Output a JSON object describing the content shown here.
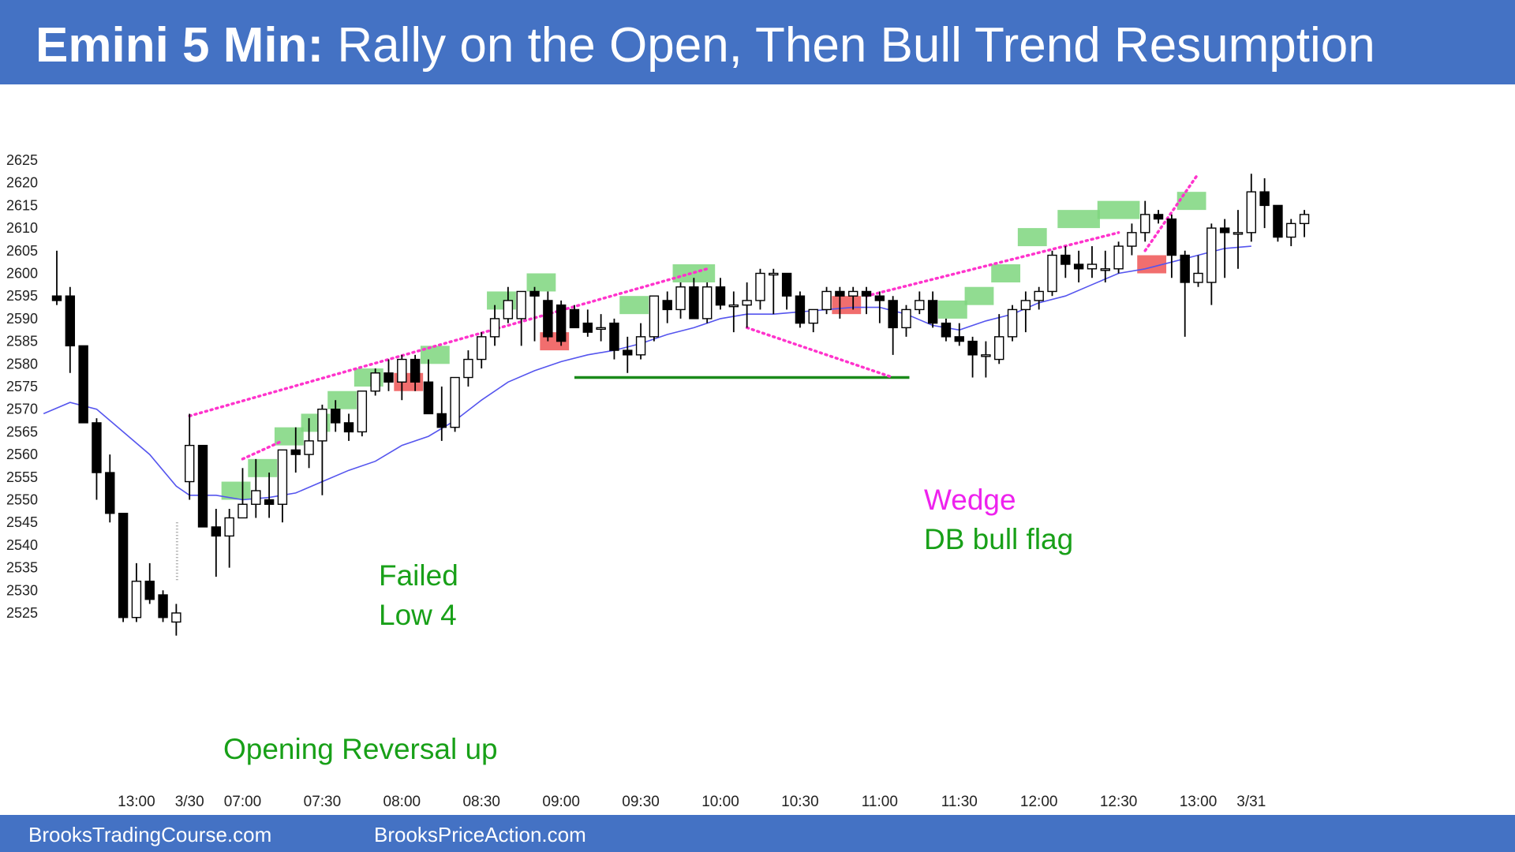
{
  "title": {
    "bold": "Emini 5 Min:",
    "rest": " Rally on the Open, Then Bull Trend Resumption"
  },
  "footer": {
    "left": "BrooksTradingCourse.com",
    "right": "BrooksPriceAction.com"
  },
  "annotations": {
    "opening_reversal": "Opening Reversal up",
    "failed_low4_line1": "Failed",
    "failed_low4_line2": "Low 4",
    "wedge": "Wedge",
    "db_bull_flag": "DB bull flag"
  },
  "colors": {
    "header_bg": "#4472c4",
    "bull_box": "#7ed67e",
    "bear_box": "#ee5555",
    "ema": "#5555ee",
    "trendline": "#ff33cc",
    "support": "#1a8a1a",
    "annotation_green": "#18a018",
    "annotation_magenta": "#ee22ee"
  },
  "chart_data": {
    "type": "candlestick",
    "title": "Emini 5 Min: Rally on the Open, Then Bull Trend Resumption",
    "y_ticks": [
      2525,
      2530,
      2535,
      2540,
      2545,
      2550,
      2555,
      2560,
      2565,
      2570,
      2575,
      2580,
      2585,
      2590,
      2595,
      2600,
      2605,
      2610,
      2615,
      2620,
      2625
    ],
    "ylim": [
      2519,
      2627
    ],
    "x_ticks": [
      {
        "bar": 6,
        "label": "13:00"
      },
      {
        "bar": 10,
        "label": "3/30"
      },
      {
        "bar": 14,
        "label": "07:00"
      },
      {
        "bar": 20,
        "label": "07:30"
      },
      {
        "bar": 26,
        "label": "08:00"
      },
      {
        "bar": 32,
        "label": "08:30"
      },
      {
        "bar": 38,
        "label": "09:00"
      },
      {
        "bar": 44,
        "label": "09:30"
      },
      {
        "bar": 50,
        "label": "10:00"
      },
      {
        "bar": 56,
        "label": "10:30"
      },
      {
        "bar": 62,
        "label": "11:00"
      },
      {
        "bar": 68,
        "label": "11:30"
      },
      {
        "bar": 74,
        "label": "12:00"
      },
      {
        "bar": 80,
        "label": "12:30"
      },
      {
        "bar": 86,
        "label": "13:00"
      },
      {
        "bar": 90,
        "label": "3/31"
      }
    ],
    "candles": [
      {
        "o": 2595,
        "h": 2605,
        "l": 2593,
        "c": 2594
      },
      {
        "o": 2595,
        "h": 2597,
        "l": 2578,
        "c": 2584
      },
      {
        "o": 2584,
        "h": 2584,
        "l": 2567,
        "c": 2567
      },
      {
        "o": 2567,
        "h": 2568,
        "l": 2550,
        "c": 2556
      },
      {
        "o": 2556,
        "h": 2560,
        "l": 2545,
        "c": 2547
      },
      {
        "o": 2547,
        "h": 2547,
        "l": 2523,
        "c": 2524
      },
      {
        "o": 2524,
        "h": 2536,
        "l": 2523,
        "c": 2532
      },
      {
        "o": 2532,
        "h": 2536,
        "l": 2527,
        "c": 2528
      },
      {
        "o": 2529,
        "h": 2530,
        "l": 2523,
        "c": 2524
      },
      {
        "o": 2523,
        "h": 2527,
        "l": 2520,
        "c": 2525
      },
      {
        "o": 2554,
        "h": 2569,
        "l": 2550,
        "c": 2562
      },
      {
        "o": 2562,
        "h": 2562,
        "l": 2544,
        "c": 2544
      },
      {
        "o": 2544,
        "h": 2548,
        "l": 2533,
        "c": 2542
      },
      {
        "o": 2542,
        "h": 2548,
        "l": 2535,
        "c": 2546
      },
      {
        "o": 2546,
        "h": 2557,
        "l": 2546,
        "c": 2549
      },
      {
        "o": 2549,
        "h": 2559,
        "l": 2546,
        "c": 2552
      },
      {
        "o": 2550,
        "h": 2556,
        "l": 2546,
        "c": 2549
      },
      {
        "o": 2549,
        "h": 2561,
        "l": 2545,
        "c": 2561
      },
      {
        "o": 2561,
        "h": 2566,
        "l": 2556,
        "c": 2560
      },
      {
        "o": 2560,
        "h": 2568,
        "l": 2557,
        "c": 2563
      },
      {
        "o": 2563,
        "h": 2571,
        "l": 2551,
        "c": 2570
      },
      {
        "o": 2570,
        "h": 2572,
        "l": 2565,
        "c": 2567
      },
      {
        "o": 2567,
        "h": 2569,
        "l": 2563,
        "c": 2565
      },
      {
        "o": 2565,
        "h": 2574,
        "l": 2564,
        "c": 2574
      },
      {
        "o": 2574,
        "h": 2579,
        "l": 2573,
        "c": 2578
      },
      {
        "o": 2578,
        "h": 2581,
        "l": 2574,
        "c": 2576
      },
      {
        "o": 2576,
        "h": 2582,
        "l": 2572,
        "c": 2581
      },
      {
        "o": 2581,
        "h": 2582,
        "l": 2574,
        "c": 2576
      },
      {
        "o": 2576,
        "h": 2581,
        "l": 2570,
        "c": 2569
      },
      {
        "o": 2569,
        "h": 2575,
        "l": 2563,
        "c": 2566
      },
      {
        "o": 2566,
        "h": 2577,
        "l": 2565,
        "c": 2577
      },
      {
        "o": 2577,
        "h": 2583,
        "l": 2575,
        "c": 2581
      },
      {
        "o": 2581,
        "h": 2587,
        "l": 2579,
        "c": 2586
      },
      {
        "o": 2586,
        "h": 2593,
        "l": 2584,
        "c": 2590
      },
      {
        "o": 2590,
        "h": 2597,
        "l": 2589,
        "c": 2594
      },
      {
        "o": 2590,
        "h": 2596,
        "l": 2584,
        "c": 2596
      },
      {
        "o": 2596,
        "h": 2597,
        "l": 2585,
        "c": 2595
      },
      {
        "o": 2594,
        "h": 2596,
        "l": 2585,
        "c": 2586
      },
      {
        "o": 2593,
        "h": 2594,
        "l": 2584,
        "c": 2585
      },
      {
        "o": 2592,
        "h": 2593,
        "l": 2588,
        "c": 2588
      },
      {
        "o": 2589,
        "h": 2592,
        "l": 2586,
        "c": 2587
      },
      {
        "o": 2588,
        "h": 2591,
        "l": 2585,
        "c": 2588
      },
      {
        "o": 2589,
        "h": 2590,
        "l": 2581,
        "c": 2583
      },
      {
        "o": 2583,
        "h": 2586,
        "l": 2578,
        "c": 2582
      },
      {
        "o": 2582,
        "h": 2589,
        "l": 2581,
        "c": 2586
      },
      {
        "o": 2586,
        "h": 2595,
        "l": 2585,
        "c": 2595
      },
      {
        "o": 2594,
        "h": 2596,
        "l": 2589,
        "c": 2592
      },
      {
        "o": 2592,
        "h": 2598,
        "l": 2590,
        "c": 2597
      },
      {
        "o": 2597,
        "h": 2599,
        "l": 2591,
        "c": 2590
      },
      {
        "o": 2590,
        "h": 2598,
        "l": 2589,
        "c": 2597
      },
      {
        "o": 2597,
        "h": 2599,
        "l": 2592,
        "c": 2593
      },
      {
        "o": 2593,
        "h": 2596,
        "l": 2587,
        "c": 2593
      },
      {
        "o": 2593,
        "h": 2598,
        "l": 2588,
        "c": 2594
      },
      {
        "o": 2594,
        "h": 2601,
        "l": 2592,
        "c": 2600
      },
      {
        "o": 2600,
        "h": 2601,
        "l": 2591,
        "c": 2600
      },
      {
        "o": 2600,
        "h": 2600,
        "l": 2592,
        "c": 2595
      },
      {
        "o": 2595,
        "h": 2596,
        "l": 2588,
        "c": 2589
      },
      {
        "o": 2589,
        "h": 2592,
        "l": 2587,
        "c": 2592
      },
      {
        "o": 2592,
        "h": 2597,
        "l": 2591,
        "c": 2596
      },
      {
        "o": 2596,
        "h": 2597,
        "l": 2590,
        "c": 2595
      },
      {
        "o": 2595,
        "h": 2597,
        "l": 2592,
        "c": 2596
      },
      {
        "o": 2596,
        "h": 2597,
        "l": 2591,
        "c": 2595
      },
      {
        "o": 2595,
        "h": 2596,
        "l": 2589,
        "c": 2594
      },
      {
        "o": 2594,
        "h": 2595,
        "l": 2582,
        "c": 2588
      },
      {
        "o": 2588,
        "h": 2593,
        "l": 2586,
        "c": 2592
      },
      {
        "o": 2592,
        "h": 2596,
        "l": 2591,
        "c": 2594
      },
      {
        "o": 2594,
        "h": 2596,
        "l": 2588,
        "c": 2589
      },
      {
        "o": 2589,
        "h": 2590,
        "l": 2585,
        "c": 2586
      },
      {
        "o": 2586,
        "h": 2589,
        "l": 2584,
        "c": 2585
      },
      {
        "o": 2585,
        "h": 2586,
        "l": 2577,
        "c": 2582
      },
      {
        "o": 2582,
        "h": 2585,
        "l": 2577,
        "c": 2582
      },
      {
        "o": 2581,
        "h": 2591,
        "l": 2580,
        "c": 2586
      },
      {
        "o": 2586,
        "h": 2593,
        "l": 2585,
        "c": 2592
      },
      {
        "o": 2592,
        "h": 2596,
        "l": 2587,
        "c": 2594
      },
      {
        "o": 2594,
        "h": 2597,
        "l": 2592,
        "c": 2596
      },
      {
        "o": 2596,
        "h": 2605,
        "l": 2595,
        "c": 2604
      },
      {
        "o": 2604,
        "h": 2606,
        "l": 2599,
        "c": 2602
      },
      {
        "o": 2602,
        "h": 2605,
        "l": 2598,
        "c": 2601
      },
      {
        "o": 2601,
        "h": 2606,
        "l": 2599,
        "c": 2602
      },
      {
        "o": 2601,
        "h": 2605,
        "l": 2598,
        "c": 2601
      },
      {
        "o": 2601,
        "h": 2607,
        "l": 2600,
        "c": 2606
      },
      {
        "o": 2606,
        "h": 2611,
        "l": 2604,
        "c": 2609
      },
      {
        "o": 2609,
        "h": 2616,
        "l": 2607,
        "c": 2613
      },
      {
        "o": 2613,
        "h": 2614,
        "l": 2611,
        "c": 2612
      },
      {
        "o": 2612,
        "h": 2613,
        "l": 2599,
        "c": 2604
      },
      {
        "o": 2604,
        "h": 2605,
        "l": 2586,
        "c": 2598
      },
      {
        "o": 2598,
        "h": 2604,
        "l": 2597,
        "c": 2600
      },
      {
        "o": 2598,
        "h": 2611,
        "l": 2593,
        "c": 2610
      },
      {
        "o": 2610,
        "h": 2612,
        "l": 2599,
        "c": 2609
      },
      {
        "o": 2609,
        "h": 2614,
        "l": 2601,
        "c": 2609
      },
      {
        "o": 2609,
        "h": 2622,
        "l": 2607,
        "c": 2618
      },
      {
        "o": 2618,
        "h": 2621,
        "l": 2610,
        "c": 2615
      },
      {
        "o": 2615,
        "h": 2614,
        "l": 2607,
        "c": 2608
      },
      {
        "o": 2608,
        "h": 2612,
        "l": 2606,
        "c": 2611
      },
      {
        "o": 2611,
        "h": 2614,
        "l": 2608,
        "c": 2613
      }
    ],
    "ema": [
      [
        -1,
        2569
      ],
      [
        1,
        2571.5
      ],
      [
        3,
        2570
      ],
      [
        5,
        2565
      ],
      [
        7,
        2560
      ],
      [
        9,
        2553
      ],
      [
        10,
        2551
      ],
      [
        12,
        2551
      ],
      [
        14,
        2550
      ],
      [
        16,
        2550.5
      ],
      [
        18,
        2551.5
      ],
      [
        20,
        2554
      ],
      [
        22,
        2556.5
      ],
      [
        24,
        2558.5
      ],
      [
        26,
        2562
      ],
      [
        28,
        2564
      ],
      [
        30,
        2567.5
      ],
      [
        32,
        2572
      ],
      [
        34,
        2576
      ],
      [
        36,
        2578.5
      ],
      [
        38,
        2580.5
      ],
      [
        40,
        2582
      ],
      [
        42,
        2583
      ],
      [
        44,
        2584.5
      ],
      [
        46,
        2586.5
      ],
      [
        48,
        2588
      ],
      [
        50,
        2590
      ],
      [
        52,
        2591
      ],
      [
        54,
        2591
      ],
      [
        56,
        2591.5
      ],
      [
        58,
        2592
      ],
      [
        60,
        2592.5
      ],
      [
        62,
        2592.5
      ],
      [
        64,
        2591
      ],
      [
        66,
        2588.5
      ],
      [
        68,
        2587.5
      ],
      [
        70,
        2589.5
      ],
      [
        72,
        2591
      ],
      [
        74,
        2593.5
      ],
      [
        76,
        2595
      ],
      [
        78,
        2597.5
      ],
      [
        80,
        2600
      ],
      [
        82,
        2601
      ],
      [
        84,
        2602.5
      ],
      [
        86,
        2604
      ],
      [
        88,
        2605.5
      ],
      [
        90,
        2606
      ]
    ],
    "bull_signal_boxes": [
      [
        13,
        14,
        2550
      ],
      [
        15,
        16,
        2555
      ],
      [
        17,
        18,
        2562
      ],
      [
        19,
        20,
        2565
      ],
      [
        21,
        22,
        2570
      ],
      [
        23,
        24,
        2575
      ],
      [
        28,
        29,
        2580
      ],
      [
        33,
        34,
        2592
      ],
      [
        36,
        37,
        2596
      ],
      [
        43,
        44,
        2591
      ],
      [
        47,
        49,
        2598
      ],
      [
        67,
        68,
        2590
      ],
      [
        69,
        70,
        2593
      ],
      [
        71,
        72,
        2598
      ],
      [
        73,
        74,
        2606
      ],
      [
        76,
        78,
        2610
      ],
      [
        79,
        81,
        2612
      ],
      [
        85,
        86,
        2614
      ]
    ],
    "bear_signal_boxes": [
      [
        26,
        27,
        2574
      ],
      [
        37,
        38,
        2583
      ],
      [
        59,
        60,
        2591
      ],
      [
        82,
        83,
        2600
      ]
    ],
    "trendlines": [
      {
        "points": [
          [
            10,
            2568.5
          ],
          [
            49,
            2601
          ]
        ],
        "style": "dotted"
      },
      {
        "points": [
          [
            14,
            2559
          ],
          [
            17,
            2563
          ]
        ],
        "style": "dotted"
      },
      {
        "points": [
          [
            52,
            2588
          ],
          [
            63,
            2577
          ]
        ],
        "style": "dotted"
      },
      {
        "points": [
          [
            61,
            2595
          ],
          [
            80,
            2609
          ]
        ],
        "style": "dotted"
      },
      {
        "points": [
          [
            82,
            2605
          ],
          [
            86,
            2622
          ]
        ],
        "style": "dotted"
      }
    ],
    "support_line": {
      "from_bar": 39,
      "to_bar": 64,
      "price": 2577
    }
  }
}
